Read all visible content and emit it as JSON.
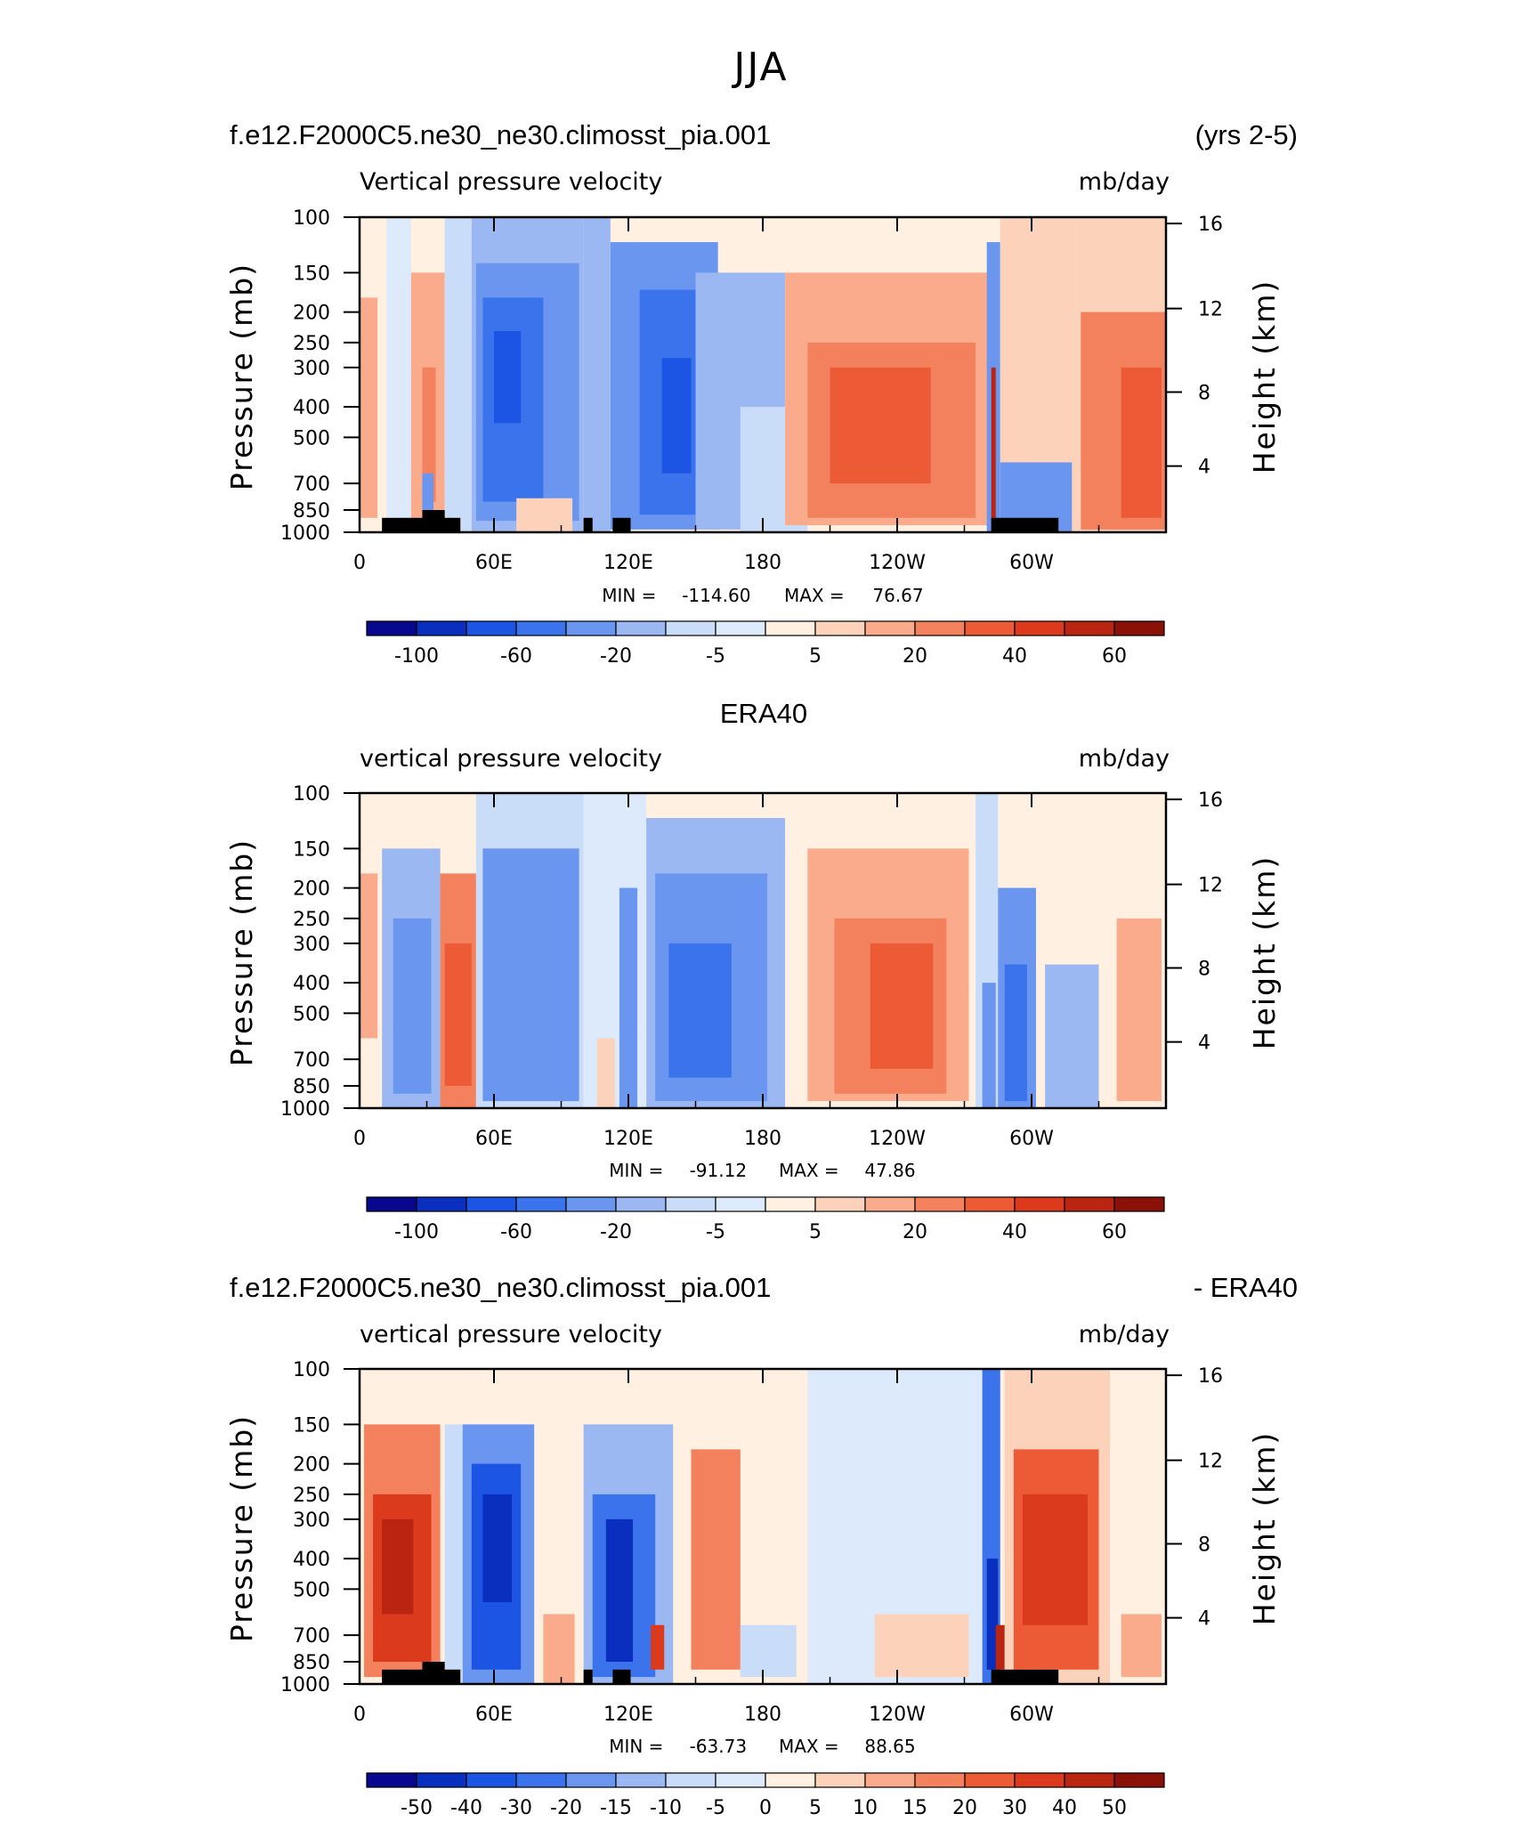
{
  "figure": {
    "title": "JJA"
  },
  "colors": {
    "abs": [
      "#08088f",
      "#0a2fbf",
      "#1c55e3",
      "#3a73ec",
      "#6a96f0",
      "#9bb8f3",
      "#c9dcf8",
      "#ddeafb",
      "#fff0e1",
      "#fdd2bb",
      "#f9ab8c",
      "#f3815e",
      "#ec5b36",
      "#dc3a1d",
      "#b92511",
      "#891108"
    ],
    "diff": [
      "#08088f",
      "#0a2fbf",
      "#1c55e3",
      "#3a73ec",
      "#6a96f0",
      "#9bb8f3",
      "#c9dcf8",
      "#ddeafb",
      "#fff0e1",
      "#fdd2bb",
      "#f9ab8c",
      "#f3815e",
      "#ec5b36",
      "#dc3a1d",
      "#b92511",
      "#891108"
    ]
  },
  "chart_data": [
    {
      "type": "heatmap",
      "id": "model",
      "title_left": "f.e12.F2000C5.ne30_ne30.climosst_pia.001",
      "title_right": "(yrs 2-5)",
      "center_title": "",
      "subtitle_left": "Vertical pressure velocity",
      "subtitle_right": "mb/day",
      "ylabel": "Pressure (mb)",
      "ylabel_right": "Height (km)",
      "x_ticks": [
        "0",
        "60E",
        "120E",
        "180",
        "120W",
        "60W"
      ],
      "y_ticks": [
        "100",
        "150",
        "200",
        "250",
        "300",
        "400",
        "500",
        "700",
        "850",
        "1000"
      ],
      "y2_ticks": [
        "16",
        "12",
        "8",
        "4"
      ],
      "stats": {
        "min_label": "MIN =",
        "min": "-114.60",
        "max_label": "MAX =",
        "max": "76.67"
      },
      "colorbar": {
        "palette": "abs",
        "labels": [
          "-100",
          "-60",
          "-20",
          "-5",
          "5",
          "20",
          "40",
          "60"
        ]
      },
      "topography": true,
      "cells": [
        {
          "x0": 0,
          "x1": 12,
          "p0": 100,
          "p1": 1000,
          "v": 2
        },
        {
          "x0": 0,
          "x1": 8,
          "p0": 180,
          "p1": 900,
          "v": 14
        },
        {
          "x0": 12,
          "x1": 23,
          "p0": 100,
          "p1": 1000,
          "v": -3
        },
        {
          "x0": 23,
          "x1": 38,
          "p0": 150,
          "p1": 950,
          "v": 10
        },
        {
          "x0": 28,
          "x1": 34,
          "p0": 300,
          "p1": 800,
          "v": 25
        },
        {
          "x0": 28,
          "x1": 33,
          "p0": 650,
          "p1": 1000,
          "v": -25
        },
        {
          "x0": 38,
          "x1": 50,
          "p0": 100,
          "p1": 1000,
          "v": -8
        },
        {
          "x0": 50,
          "x1": 100,
          "p0": 100,
          "p1": 1000,
          "v": -12
        },
        {
          "x0": 52,
          "x1": 98,
          "p0": 140,
          "p1": 920,
          "v": -35
        },
        {
          "x0": 55,
          "x1": 82,
          "p0": 180,
          "p1": 800,
          "v": -55
        },
        {
          "x0": 60,
          "x1": 72,
          "p0": 230,
          "p1": 450,
          "v": -75
        },
        {
          "x0": 70,
          "x1": 95,
          "p0": 780,
          "p1": 1000,
          "v": 8
        },
        {
          "x0": 100,
          "x1": 112,
          "p0": 100,
          "p1": 1000,
          "v": -12
        },
        {
          "x0": 112,
          "x1": 160,
          "p0": 120,
          "p1": 980,
          "v": -30
        },
        {
          "x0": 125,
          "x1": 155,
          "p0": 170,
          "p1": 880,
          "v": -55
        },
        {
          "x0": 135,
          "x1": 148,
          "p0": 280,
          "p1": 650,
          "v": -80
        },
        {
          "x0": 150,
          "x1": 190,
          "p0": 150,
          "p1": 980,
          "v": -15
        },
        {
          "x0": 170,
          "x1": 200,
          "p0": 400,
          "p1": 1000,
          "v": -10
        },
        {
          "x0": 200,
          "x1": 280,
          "p0": 100,
          "p1": 1000,
          "v": 4
        },
        {
          "x0": 190,
          "x1": 282,
          "p0": 150,
          "p1": 950,
          "v": 10
        },
        {
          "x0": 200,
          "x1": 275,
          "p0": 250,
          "p1": 900,
          "v": 28
        },
        {
          "x0": 210,
          "x1": 255,
          "p0": 300,
          "p1": 700,
          "v": 35
        },
        {
          "x0": 280,
          "x1": 286,
          "p0": 120,
          "p1": 1000,
          "v": -30
        },
        {
          "x0": 282,
          "x1": 284,
          "p0": 300,
          "p1": 1000,
          "v": 50
        },
        {
          "x0": 286,
          "x1": 320,
          "p0": 100,
          "p1": 1000,
          "v": 8
        },
        {
          "x0": 286,
          "x1": 318,
          "p0": 600,
          "p1": 1000,
          "v": -25
        },
        {
          "x0": 320,
          "x1": 360,
          "p0": 100,
          "p1": 1000,
          "v": 5
        },
        {
          "x0": 322,
          "x1": 360,
          "p0": 200,
          "p1": 980,
          "v": 24
        },
        {
          "x0": 340,
          "x1": 358,
          "p0": 300,
          "p1": 900,
          "v": 35
        }
      ]
    },
    {
      "type": "heatmap",
      "id": "obs",
      "title_left": "",
      "title_right": "",
      "center_title": "ERA40",
      "subtitle_left": "vertical pressure velocity",
      "subtitle_right": "mb/day",
      "ylabel": "Pressure (mb)",
      "ylabel_right": "Height (km)",
      "x_ticks": [
        "0",
        "60E",
        "120E",
        "180",
        "120W",
        "60W"
      ],
      "y_ticks": [
        "100",
        "150",
        "200",
        "250",
        "300",
        "400",
        "500",
        "700",
        "850",
        "1000"
      ],
      "y2_ticks": [
        "16",
        "12",
        "8",
        "4"
      ],
      "stats": {
        "min_label": "MIN =",
        "min": "-91.12",
        "max_label": "MAX =",
        "max": "47.86"
      },
      "colorbar": {
        "palette": "abs",
        "labels": [
          "-100",
          "-60",
          "-20",
          "-5",
          "5",
          "20",
          "40",
          "60"
        ]
      },
      "topography": false,
      "cells": [
        {
          "x0": 0,
          "x1": 10,
          "p0": 100,
          "p1": 1000,
          "v": 3
        },
        {
          "x0": 0,
          "x1": 8,
          "p0": 180,
          "p1": 600,
          "v": 10
        },
        {
          "x0": 10,
          "x1": 36,
          "p0": 150,
          "p1": 1000,
          "v": -15
        },
        {
          "x0": 15,
          "x1": 32,
          "p0": 250,
          "p1": 900,
          "v": -35
        },
        {
          "x0": 36,
          "x1": 52,
          "p0": 180,
          "p1": 1000,
          "v": 22
        },
        {
          "x0": 38,
          "x1": 50,
          "p0": 300,
          "p1": 850,
          "v": 35
        },
        {
          "x0": 52,
          "x1": 100,
          "p0": 100,
          "p1": 1000,
          "v": -10
        },
        {
          "x0": 55,
          "x1": 98,
          "p0": 150,
          "p1": 950,
          "v": -25
        },
        {
          "x0": 60,
          "x1": 92,
          "p0": 220,
          "p1": 850,
          "v": -35
        },
        {
          "x0": 100,
          "x1": 128,
          "p0": 100,
          "p1": 1000,
          "v": -5
        },
        {
          "x0": 106,
          "x1": 114,
          "p0": 600,
          "p1": 1000,
          "v": 8
        },
        {
          "x0": 116,
          "x1": 124,
          "p0": 200,
          "p1": 1000,
          "v": -25
        },
        {
          "x0": 128,
          "x1": 190,
          "p0": 120,
          "p1": 1000,
          "v": -18
        },
        {
          "x0": 132,
          "x1": 182,
          "p0": 180,
          "p1": 950,
          "v": -35
        },
        {
          "x0": 138,
          "x1": 166,
          "p0": 300,
          "p1": 800,
          "v": -55
        },
        {
          "x0": 190,
          "x1": 275,
          "p0": 100,
          "p1": 1000,
          "v": 4
        },
        {
          "x0": 200,
          "x1": 272,
          "p0": 150,
          "p1": 950,
          "v": 12
        },
        {
          "x0": 212,
          "x1": 262,
          "p0": 250,
          "p1": 900,
          "v": 24
        },
        {
          "x0": 228,
          "x1": 256,
          "p0": 300,
          "p1": 750,
          "v": 32
        },
        {
          "x0": 275,
          "x1": 285,
          "p0": 100,
          "p1": 1000,
          "v": -8
        },
        {
          "x0": 278,
          "x1": 284,
          "p0": 400,
          "p1": 1000,
          "v": -40
        },
        {
          "x0": 285,
          "x1": 302,
          "p0": 200,
          "p1": 1000,
          "v": -22
        },
        {
          "x0": 288,
          "x1": 298,
          "p0": 350,
          "p1": 950,
          "v": -45
        },
        {
          "x0": 302,
          "x1": 336,
          "p0": 100,
          "p1": 1000,
          "v": 3
        },
        {
          "x0": 306,
          "x1": 330,
          "p0": 350,
          "p1": 1000,
          "v": -15
        },
        {
          "x0": 336,
          "x1": 360,
          "p0": 100,
          "p1": 1000,
          "v": 4
        },
        {
          "x0": 338,
          "x1": 358,
          "p0": 250,
          "p1": 950,
          "v": 14
        }
      ]
    },
    {
      "type": "heatmap",
      "id": "diff",
      "title_left": "f.e12.F2000C5.ne30_ne30.climosst_pia.001",
      "title_right": "- ERA40",
      "center_title": "",
      "subtitle_left": "vertical pressure velocity",
      "subtitle_right": "mb/day",
      "ylabel": "Pressure (mb)",
      "ylabel_right": "Height (km)",
      "x_ticks": [
        "0",
        "60E",
        "120E",
        "180",
        "120W",
        "60W"
      ],
      "y_ticks": [
        "100",
        "150",
        "200",
        "250",
        "300",
        "400",
        "500",
        "700",
        "850",
        "1000"
      ],
      "y2_ticks": [
        "16",
        "12",
        "8",
        "4"
      ],
      "stats": {
        "min_label": "MIN =",
        "min": "-63.73",
        "max_label": "MAX =",
        "max": "88.65"
      },
      "colorbar": {
        "palette": "diff",
        "labels": [
          "-50",
          "-40",
          "-30",
          "-20",
          "-15",
          "-10",
          "-5",
          "0",
          "5",
          "10",
          "15",
          "20",
          "30",
          "40",
          "50"
        ]
      },
      "topography": true,
      "cells": [
        {
          "x0": 0,
          "x1": 38,
          "p0": 100,
          "p1": 1000,
          "v": 3
        },
        {
          "x0": 2,
          "x1": 36,
          "p0": 150,
          "p1": 950,
          "v": 18
        },
        {
          "x0": 6,
          "x1": 32,
          "p0": 250,
          "p1": 850,
          "v": 30
        },
        {
          "x0": 10,
          "x1": 24,
          "p0": 300,
          "p1": 600,
          "v": 42
        },
        {
          "x0": 38,
          "x1": 46,
          "p0": 150,
          "p1": 1000,
          "v": -8
        },
        {
          "x0": 46,
          "x1": 78,
          "p0": 150,
          "p1": 1000,
          "v": -20
        },
        {
          "x0": 50,
          "x1": 72,
          "p0": 200,
          "p1": 900,
          "v": -32
        },
        {
          "x0": 55,
          "x1": 68,
          "p0": 250,
          "p1": 550,
          "v": -45
        },
        {
          "x0": 78,
          "x1": 100,
          "p0": 100,
          "p1": 1000,
          "v": 3
        },
        {
          "x0": 82,
          "x1": 96,
          "p0": 600,
          "p1": 1000,
          "v": 12
        },
        {
          "x0": 100,
          "x1": 140,
          "p0": 150,
          "p1": 1000,
          "v": -12
        },
        {
          "x0": 104,
          "x1": 132,
          "p0": 250,
          "p1": 950,
          "v": -30
        },
        {
          "x0": 110,
          "x1": 122,
          "p0": 300,
          "p1": 850,
          "v": -45
        },
        {
          "x0": 130,
          "x1": 136,
          "p0": 650,
          "p1": 900,
          "v": 30
        },
        {
          "x0": 140,
          "x1": 200,
          "p0": 100,
          "p1": 1000,
          "v": 3
        },
        {
          "x0": 148,
          "x1": 170,
          "p0": 180,
          "p1": 900,
          "v": 16
        },
        {
          "x0": 170,
          "x1": 195,
          "p0": 650,
          "p1": 950,
          "v": -10
        },
        {
          "x0": 200,
          "x1": 278,
          "p0": 100,
          "p1": 1000,
          "v": -2
        },
        {
          "x0": 230,
          "x1": 272,
          "p0": 600,
          "p1": 950,
          "v": 6
        },
        {
          "x0": 278,
          "x1": 286,
          "p0": 100,
          "p1": 1000,
          "v": -25
        },
        {
          "x0": 280,
          "x1": 285,
          "p0": 400,
          "p1": 900,
          "v": -45
        },
        {
          "x0": 284,
          "x1": 288,
          "p0": 650,
          "p1": 900,
          "v": 45
        },
        {
          "x0": 288,
          "x1": 335,
          "p0": 100,
          "p1": 1000,
          "v": 6
        },
        {
          "x0": 292,
          "x1": 330,
          "p0": 180,
          "p1": 900,
          "v": 22
        },
        {
          "x0": 296,
          "x1": 325,
          "p0": 250,
          "p1": 650,
          "v": 32
        },
        {
          "x0": 335,
          "x1": 360,
          "p0": 100,
          "p1": 1000,
          "v": 3
        },
        {
          "x0": 340,
          "x1": 358,
          "p0": 600,
          "p1": 950,
          "v": 10
        }
      ]
    }
  ]
}
